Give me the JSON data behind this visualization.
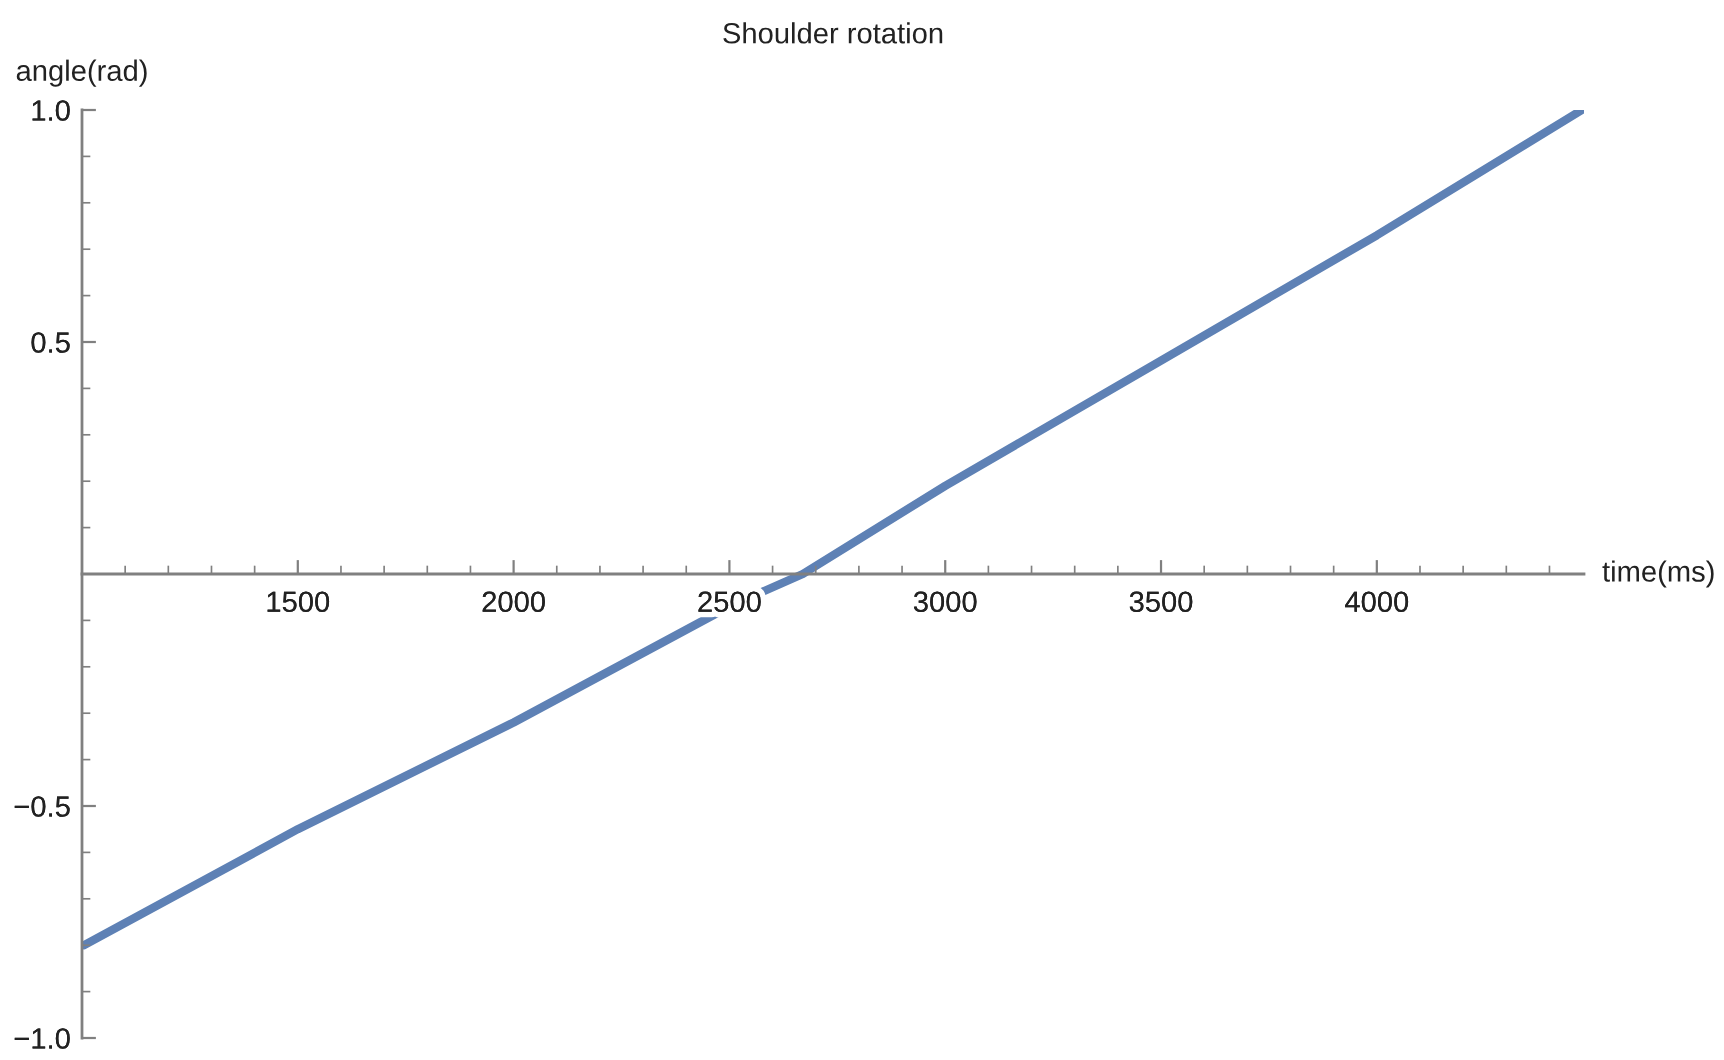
{
  "chart_data": {
    "type": "line",
    "title": "Shoulder rotation",
    "xlabel": "time(ms)",
    "ylabel": "angle(rad)",
    "x": [
      1005,
      1500,
      2000,
      2500,
      2670,
      3000,
      3500,
      4000,
      4475
    ],
    "series": [
      {
        "color": "#5e81b5",
        "values": [
          -0.8,
          -0.55,
          -0.32,
          -0.07,
          0.0,
          0.19,
          0.46,
          0.73,
          1.0
        ]
      }
    ],
    "xlim": [
      1000,
      4480
    ],
    "ylim": [
      -1.0,
      1.0
    ],
    "xticks": [
      1500,
      2000,
      2500,
      3000,
      3500,
      4000
    ],
    "yticks": [
      {
        "value": -1.0,
        "label": "−1.0"
      },
      {
        "value": -0.5,
        "label": "−0.5"
      },
      {
        "value": 0.5,
        "label": "0.5"
      },
      {
        "value": 1.0,
        "label": "1.0"
      }
    ]
  }
}
